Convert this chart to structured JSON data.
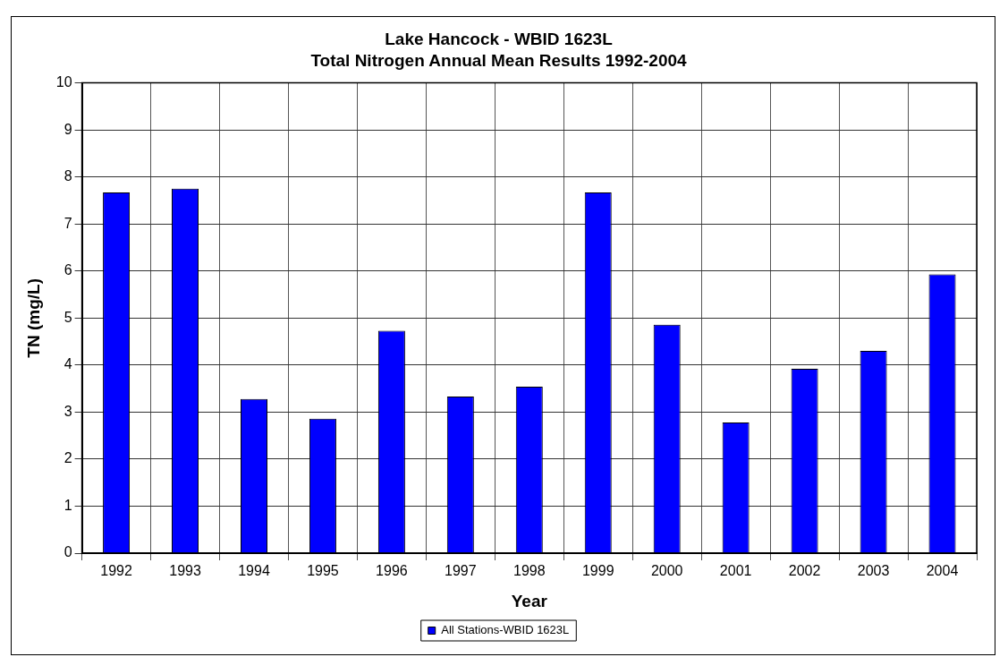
{
  "chart_data": {
    "type": "bar",
    "title": "Lake Hancock - WBID 1623L",
    "subtitle": "Total Nitrogen Annual Mean Results 1992-2004",
    "xlabel": "Year",
    "ylabel": "TN (mg/L)",
    "categories": [
      "1992",
      "1993",
      "1994",
      "1995",
      "1996",
      "1997",
      "1998",
      "1999",
      "2000",
      "2001",
      "2002",
      "2003",
      "2004"
    ],
    "series": [
      {
        "name": "All Stations-WBID 1623L",
        "color": "#0000ff",
        "values": [
          7.67,
          7.75,
          3.28,
          2.86,
          4.73,
          3.33,
          3.54,
          7.67,
          4.86,
          2.78,
          3.92,
          4.3,
          5.93
        ]
      }
    ],
    "ylim": [
      0,
      10
    ],
    "yticks": [
      0,
      1,
      2,
      3,
      4,
      5,
      6,
      7,
      8,
      9,
      10
    ],
    "grid": true,
    "legend": "bottom"
  }
}
